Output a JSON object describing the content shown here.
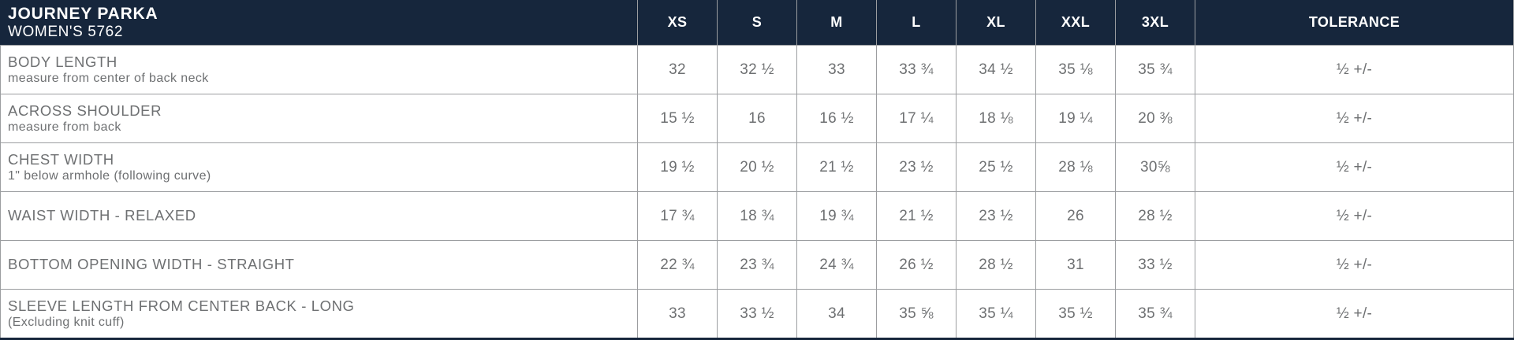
{
  "header": {
    "title": "JOURNEY PARKA",
    "subtitle": "WOMEN'S 5762"
  },
  "chart_data": {
    "type": "table",
    "title": "JOURNEY PARKA",
    "subtitle": "WOMEN'S 5762",
    "columns": [
      "XS",
      "S",
      "M",
      "L",
      "XL",
      "XXL",
      "3XL",
      "TOLERANCE"
    ],
    "rows": [
      {
        "label": "BODY LENGTH",
        "sublabel": "measure from center of back neck",
        "values": [
          "32",
          "32 ½",
          "33",
          "33 ¾",
          "34 ½",
          "35 ⅛",
          "35 ¾"
        ],
        "tolerance": "½ +/-"
      },
      {
        "label": "ACROSS SHOULDER",
        "sublabel": "measure from back",
        "values": [
          "15 ½",
          "16",
          "16 ½",
          "17 ¼",
          "18 ⅛",
          "19 ¼",
          "20 ⅜"
        ],
        "tolerance": "½ +/-"
      },
      {
        "label": "CHEST WIDTH",
        "sublabel": "1\" below armhole (following curve)",
        "values": [
          "19 ½",
          "20 ½",
          "21 ½",
          "23 ½",
          "25 ½",
          "28 ⅛",
          "30⅝"
        ],
        "tolerance": "½ +/-"
      },
      {
        "label": "WAIST WIDTH - RELAXED",
        "sublabel": "",
        "values": [
          "17 ¾",
          "18 ¾",
          "19 ¾",
          "21 ½",
          "23 ½",
          "26",
          "28 ½"
        ],
        "tolerance": "½ +/-"
      },
      {
        "label": "BOTTOM OPENING WIDTH - STRAIGHT",
        "sublabel": "",
        "values": [
          "22 ¾",
          "23 ¾",
          "24 ¾",
          "26 ½",
          "28 ½",
          "31",
          "33 ½"
        ],
        "tolerance": "½ +/-"
      },
      {
        "label": "SLEEVE LENGTH FROM CENTER BACK - LONG",
        "sublabel": "(Excluding knit cuff)",
        "values": [
          "33",
          "33 ½",
          "34",
          "35 ⅝",
          "35 ¼",
          "35 ½",
          "35 ¾"
        ],
        "tolerance": "½ +/-"
      }
    ],
    "layout": {
      "legend": "none",
      "grid": "on"
    }
  },
  "colors": {
    "header_bg": "#16263C",
    "header_text": "#FFFFFF",
    "body_text": "#6E7072",
    "grid_line": "#9B9DA0"
  }
}
